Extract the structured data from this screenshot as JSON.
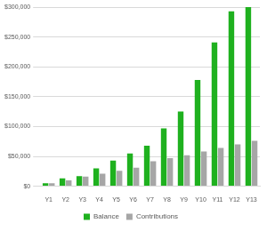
{
  "chart_data": {
    "type": "bar",
    "categories": [
      "Y1",
      "Y2",
      "Y3",
      "Y4",
      "Y5",
      "Y6",
      "Y7",
      "Y8",
      "Y9",
      "Y10",
      "Y11",
      "Y12",
      "Y13"
    ],
    "series": [
      {
        "name": "Balance",
        "color": "#1fb11f",
        "values": [
          5000,
          13000,
          17000,
          30000,
          43000,
          55000,
          68000,
          97000,
          125000,
          178000,
          241000,
          293000,
          300000
        ]
      },
      {
        "name": "Contributions",
        "color": "#a6a6a6",
        "values": [
          5000,
          10000,
          16000,
          21000,
          26000,
          31000,
          42000,
          47000,
          52000,
          58000,
          64000,
          70000,
          76000
        ]
      }
    ],
    "ylim": [
      0,
      300000
    ],
    "yticks": [
      {
        "value": 0,
        "label": "$0"
      },
      {
        "value": 50000,
        "label": "$50,000"
      },
      {
        "value": 100000,
        "label": "$100,000"
      },
      {
        "value": 150000,
        "label": "$150,000"
      },
      {
        "value": 200000,
        "label": "$200,000"
      },
      {
        "value": 250000,
        "label": "$250,000"
      },
      {
        "value": 300000,
        "label": "$300,000"
      }
    ],
    "grid": true,
    "legend": "bottom"
  }
}
